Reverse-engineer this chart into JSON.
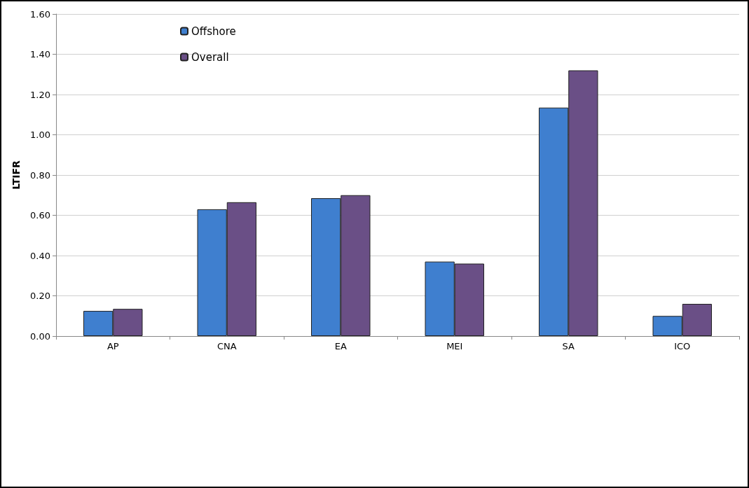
{
  "chart_data": {
    "type": "bar",
    "ylabel": "LTIFR",
    "categories": [
      "AP",
      "CNA",
      "EA",
      "MEI",
      "SA",
      "ICO"
    ],
    "series": [
      {
        "name": "Offshore",
        "color": "#3f7fcf",
        "values": [
          0.125,
          0.63,
          0.685,
          0.37,
          1.135,
          0.1
        ]
      },
      {
        "name": "Overall",
        "color": "#6a4f86",
        "values": [
          0.135,
          0.665,
          0.7,
          0.36,
          1.32,
          0.16
        ]
      }
    ],
    "ylim": [
      0,
      1.6
    ],
    "yticks": [
      {
        "value": 0,
        "label": "0.00"
      },
      {
        "value": 0.2,
        "label": "0.20"
      },
      {
        "value": 0.4,
        "label": "0.40"
      },
      {
        "value": 0.6,
        "label": "0.60"
      },
      {
        "value": 0.8,
        "label": "0.80"
      },
      {
        "value": 1,
        "label": "1.00"
      },
      {
        "value": 1.2,
        "label": "1.20"
      },
      {
        "value": 1.4,
        "label": "1.40"
      },
      {
        "value": 1.6,
        "label": "1.60"
      }
    ],
    "grid": "y",
    "legend": "top left"
  }
}
